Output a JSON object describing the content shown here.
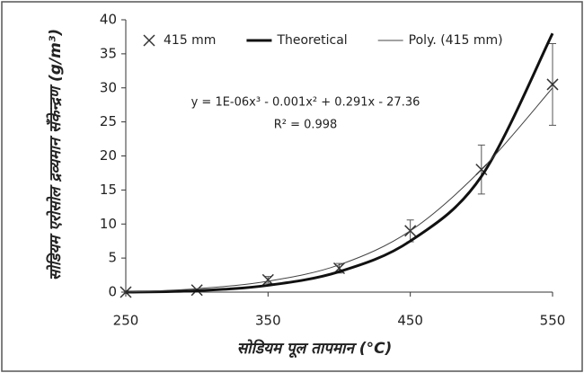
{
  "chart_data": {
    "type": "line",
    "x_label": "सोडियम पूल तापमान (°C)",
    "y_label": "सोडियम एरोसोल द्रव्यमान सँकेन्द्रण (g/m³)",
    "annotations": [
      "y = 1E-06x³ - 0.001x² + 0.291x - 27.36",
      "R² = 0.998"
    ],
    "x": [
      250,
      300,
      350,
      400,
      450,
      500,
      550
    ],
    "series": [
      {
        "name": "415 mm",
        "color": "#333333",
        "marker": "x",
        "values": [
          0,
          0.3,
          1.8,
          3.5,
          9,
          18,
          30.5
        ],
        "errors": [
          null,
          null,
          0.5,
          0.7,
          1.6,
          3.6,
          6
        ]
      },
      {
        "name": "Theoretical",
        "color": "#111111",
        "line_width": 3,
        "values": [
          0,
          0.2,
          1,
          3,
          7.5,
          17,
          38
        ]
      },
      {
        "name": "Poly. (415 mm)",
        "color": "#444444",
        "line_width": 1,
        "values": [
          0,
          0.5,
          1.6,
          4,
          9,
          18,
          30
        ]
      }
    ],
    "xlim": [
      250,
      550
    ],
    "xticks": [
      250,
      350,
      450,
      550
    ],
    "ylim": [
      0,
      40
    ],
    "yticks": [
      0,
      5,
      10,
      15,
      20,
      25,
      30,
      35,
      40
    ],
    "legend": "top"
  }
}
